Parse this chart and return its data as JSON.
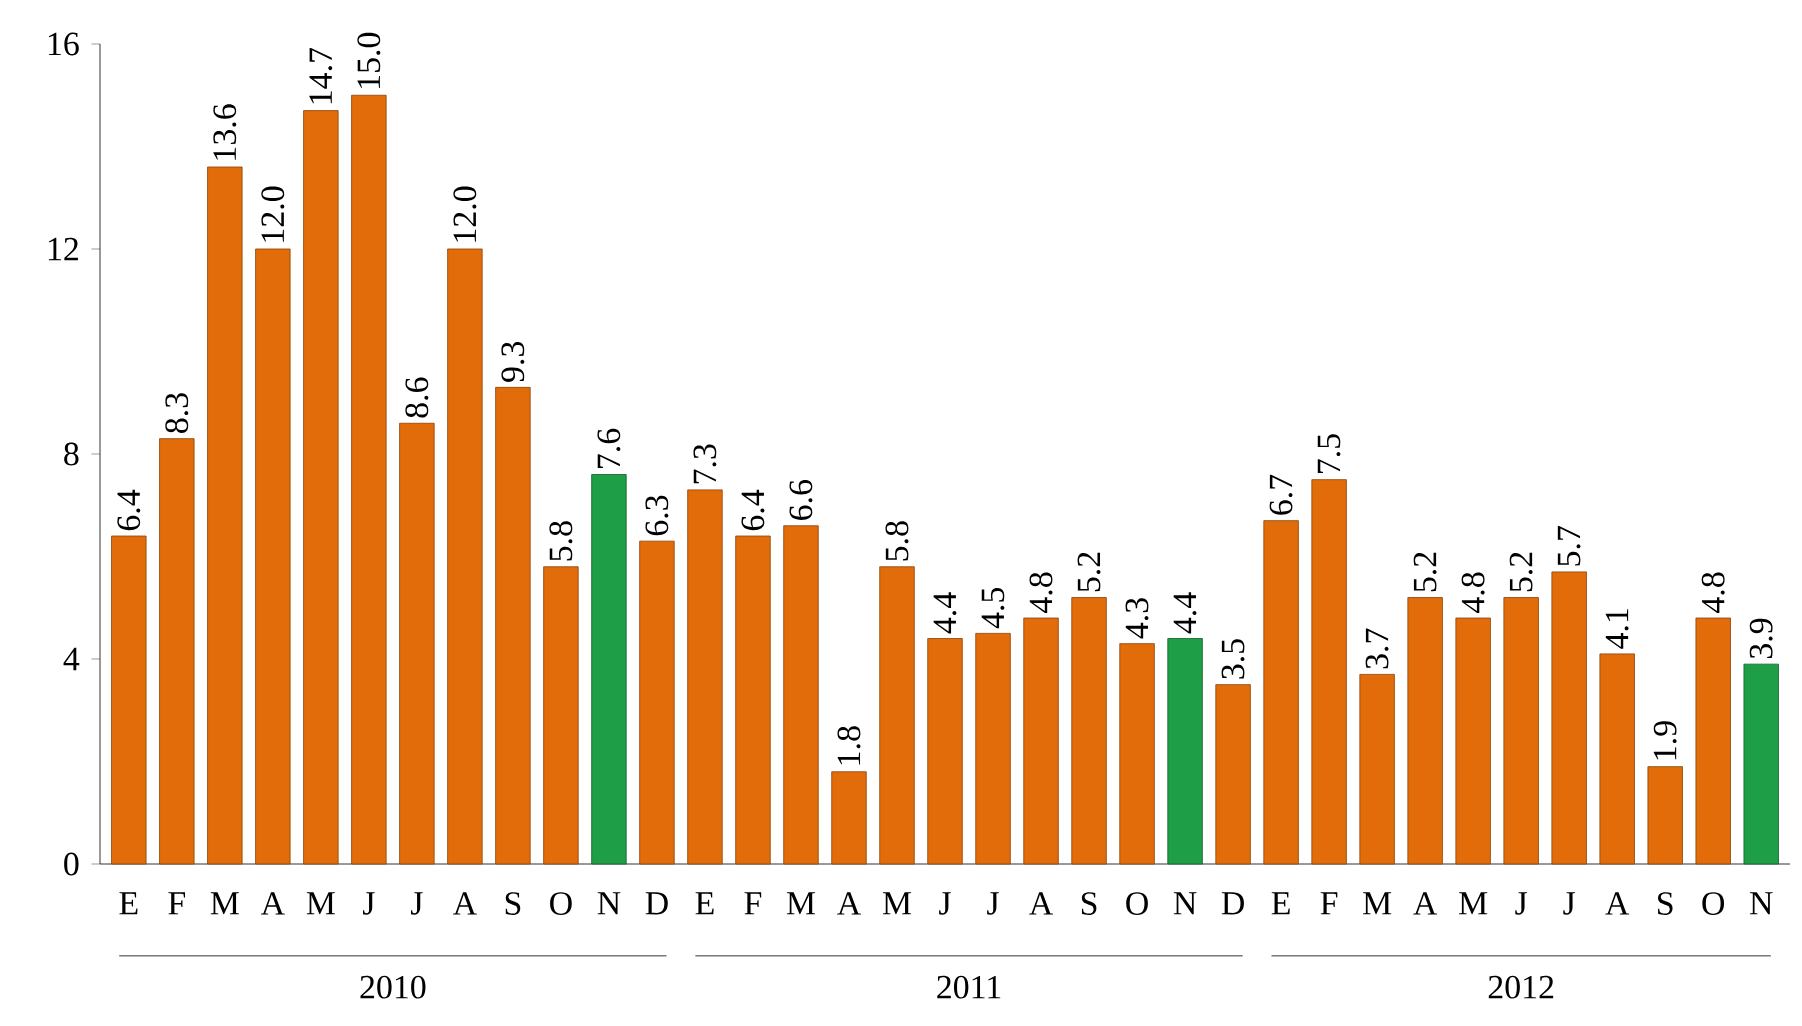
{
  "chart_data": {
    "type": "bar",
    "categories": [
      "E",
      "F",
      "M",
      "A",
      "M",
      "J",
      "J",
      "A",
      "S",
      "O",
      "N",
      "D",
      "E",
      "F",
      "M",
      "A",
      "M",
      "J",
      "J",
      "A",
      "S",
      "O",
      "N",
      "D",
      "E",
      "F",
      "M",
      "A",
      "M",
      "J",
      "J",
      "A",
      "S",
      "O",
      "N"
    ],
    "values": [
      6.4,
      8.3,
      13.6,
      12.0,
      14.7,
      15.0,
      8.6,
      12.0,
      9.3,
      5.8,
      7.6,
      6.3,
      7.3,
      6.4,
      6.6,
      1.8,
      5.8,
      4.4,
      4.5,
      4.8,
      5.2,
      4.3,
      4.4,
      3.5,
      6.7,
      7.5,
      3.7,
      5.2,
      4.8,
      5.2,
      5.7,
      4.1,
      1.9,
      4.8,
      3.9
    ],
    "value_labels": [
      "6.4",
      "8.3",
      "13.6",
      "12.0",
      "14.7",
      "15.0",
      "8.6",
      "12.0",
      "9.3",
      "5.8",
      "7.6",
      "6.3",
      "7.3",
      "6.4",
      "6.6",
      "1.8",
      "5.8",
      "4.4",
      "4.5",
      "4.8",
      "5.2",
      "4.3",
      "4.4",
      "3.5",
      "6.7",
      "7.5",
      "3.7",
      "5.2",
      "4.8",
      "5.2",
      "5.7",
      "4.1",
      "1.9",
      "4.8",
      "3.9"
    ],
    "colors": [
      "#e36c0a",
      "#e36c0a",
      "#e36c0a",
      "#e36c0a",
      "#e36c0a",
      "#e36c0a",
      "#e36c0a",
      "#e36c0a",
      "#e36c0a",
      "#e36c0a",
      "#1e9e46",
      "#e36c0a",
      "#e36c0a",
      "#e36c0a",
      "#e36c0a",
      "#e36c0a",
      "#e36c0a",
      "#e36c0a",
      "#e36c0a",
      "#e36c0a",
      "#e36c0a",
      "#e36c0a",
      "#1e9e46",
      "#e36c0a",
      "#e36c0a",
      "#e36c0a",
      "#e36c0a",
      "#e36c0a",
      "#e36c0a",
      "#e36c0a",
      "#e36c0a",
      "#e36c0a",
      "#e36c0a",
      "#e36c0a",
      "#1e9e46"
    ],
    "ylim": [
      0,
      16
    ],
    "yticks": [
      0,
      4,
      8,
      12,
      16
    ],
    "annotations": [
      "2010",
      "2011",
      "2012"
    ]
  }
}
